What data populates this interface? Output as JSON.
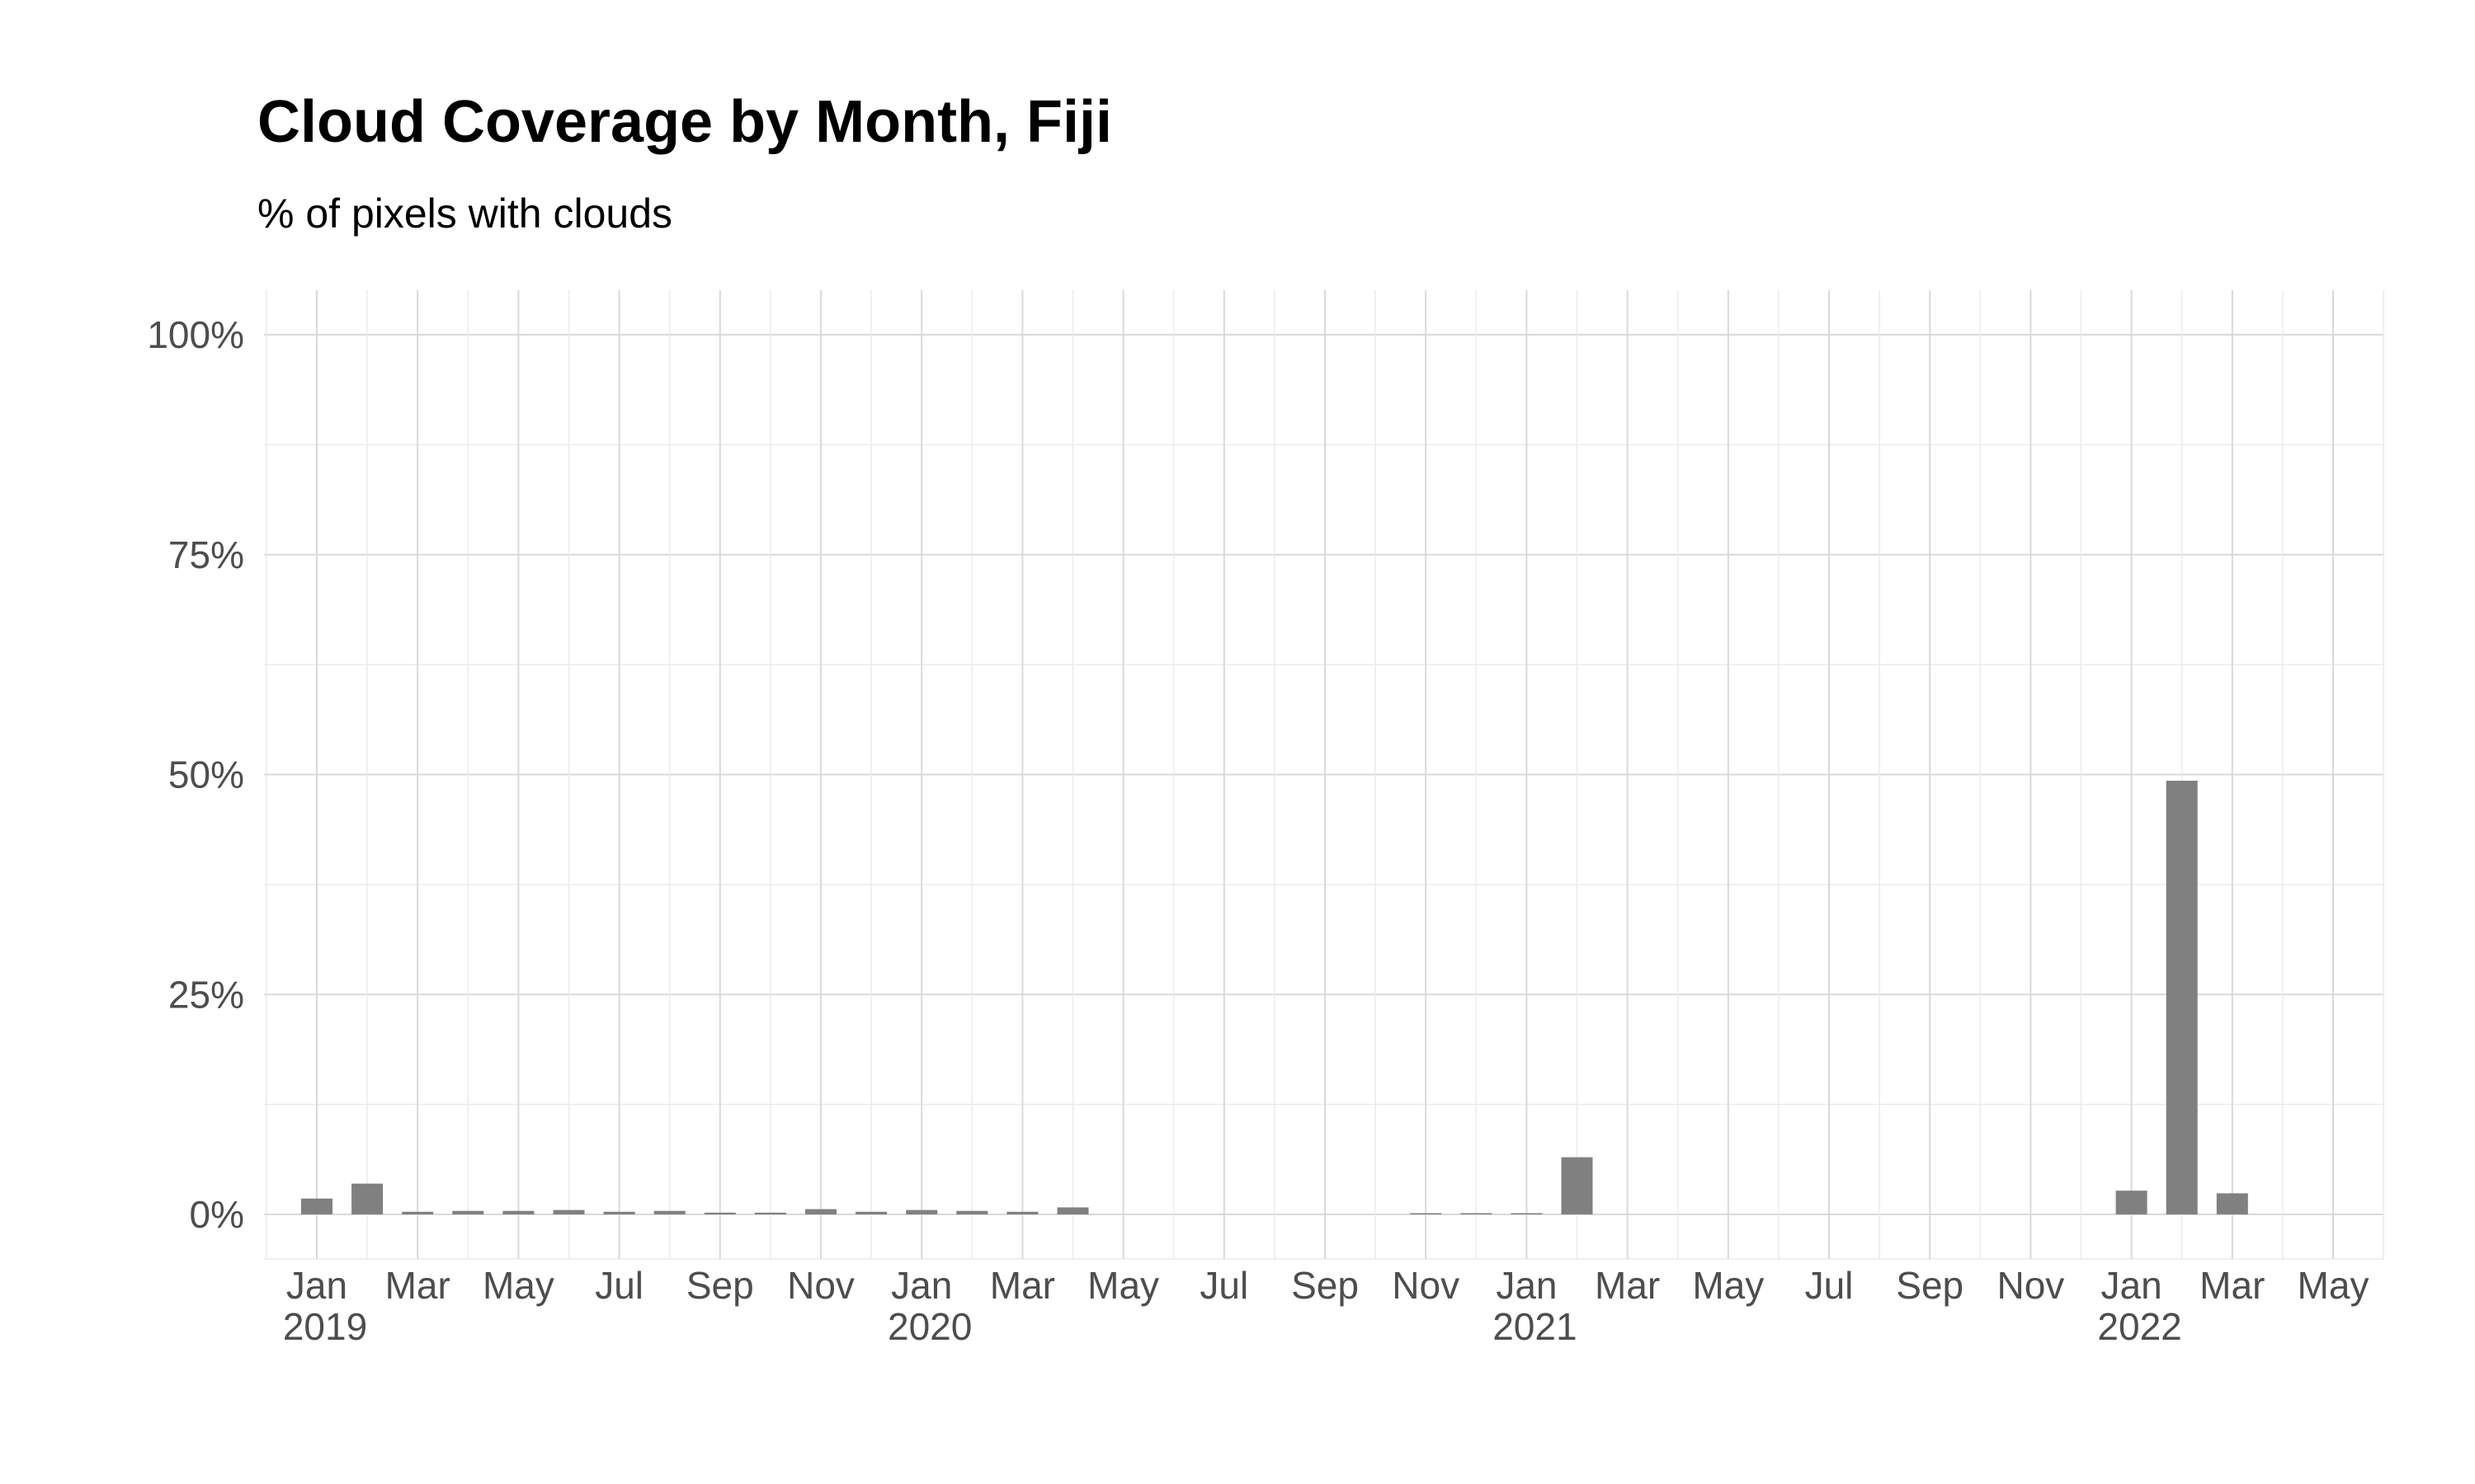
{
  "chart_data": {
    "type": "bar",
    "title": "Cloud Coverage by Month, Fiji",
    "subtitle": "% of pixels with clouds",
    "xlabel": "",
    "ylabel": "",
    "ylim": [
      0,
      100
    ],
    "yticks": [
      0,
      25,
      50,
      75,
      100
    ],
    "ytick_labels": [
      "0%",
      "25%",
      "50%",
      "75%",
      "100%"
    ],
    "x_range": [
      "2018-12",
      "2022-06"
    ],
    "xticks": [
      {
        "date": "2019-01",
        "label": "Jan",
        "year": "2019"
      },
      {
        "date": "2019-03",
        "label": "Mar",
        "year": ""
      },
      {
        "date": "2019-05",
        "label": "May",
        "year": ""
      },
      {
        "date": "2019-07",
        "label": "Jul",
        "year": ""
      },
      {
        "date": "2019-09",
        "label": "Sep",
        "year": ""
      },
      {
        "date": "2019-11",
        "label": "Nov",
        "year": ""
      },
      {
        "date": "2020-01",
        "label": "Jan",
        "year": "2020"
      },
      {
        "date": "2020-03",
        "label": "Mar",
        "year": ""
      },
      {
        "date": "2020-05",
        "label": "May",
        "year": ""
      },
      {
        "date": "2020-07",
        "label": "Jul",
        "year": ""
      },
      {
        "date": "2020-09",
        "label": "Sep",
        "year": ""
      },
      {
        "date": "2020-11",
        "label": "Nov",
        "year": ""
      },
      {
        "date": "2021-01",
        "label": "Jan",
        "year": "2021"
      },
      {
        "date": "2021-03",
        "label": "Mar",
        "year": ""
      },
      {
        "date": "2021-05",
        "label": "May",
        "year": ""
      },
      {
        "date": "2021-07",
        "label": "Jul",
        "year": ""
      },
      {
        "date": "2021-09",
        "label": "Sep",
        "year": ""
      },
      {
        "date": "2021-11",
        "label": "Nov",
        "year": ""
      },
      {
        "date": "2022-01",
        "label": "Jan",
        "year": "2022"
      },
      {
        "date": "2022-03",
        "label": "Mar",
        "year": ""
      },
      {
        "date": "2022-05",
        "label": "May",
        "year": ""
      }
    ],
    "grid": true,
    "bar_color": "#808080",
    "data": [
      {
        "x": "2019-01",
        "y": 1.8
      },
      {
        "x": "2019-02",
        "y": 3.5
      },
      {
        "x": "2019-03",
        "y": 0.3
      },
      {
        "x": "2019-04",
        "y": 0.4
      },
      {
        "x": "2019-05",
        "y": 0.4
      },
      {
        "x": "2019-06",
        "y": 0.5
      },
      {
        "x": "2019-07",
        "y": 0.3
      },
      {
        "x": "2019-08",
        "y": 0.4
      },
      {
        "x": "2019-09",
        "y": 0.2
      },
      {
        "x": "2019-10",
        "y": 0.2
      },
      {
        "x": "2019-11",
        "y": 0.6
      },
      {
        "x": "2019-12",
        "y": 0.3
      },
      {
        "x": "2020-01",
        "y": 0.5
      },
      {
        "x": "2020-02",
        "y": 0.4
      },
      {
        "x": "2020-03",
        "y": 0.3
      },
      {
        "x": "2020-04",
        "y": 0.8
      },
      {
        "x": "2020-11",
        "y": 0.1
      },
      {
        "x": "2020-12",
        "y": 0.1
      },
      {
        "x": "2021-01",
        "y": 0.1
      },
      {
        "x": "2021-02",
        "y": 6.5
      },
      {
        "x": "2022-01",
        "y": 2.7
      },
      {
        "x": "2022-02",
        "y": 49.3
      },
      {
        "x": "2022-03",
        "y": 2.4
      }
    ]
  }
}
